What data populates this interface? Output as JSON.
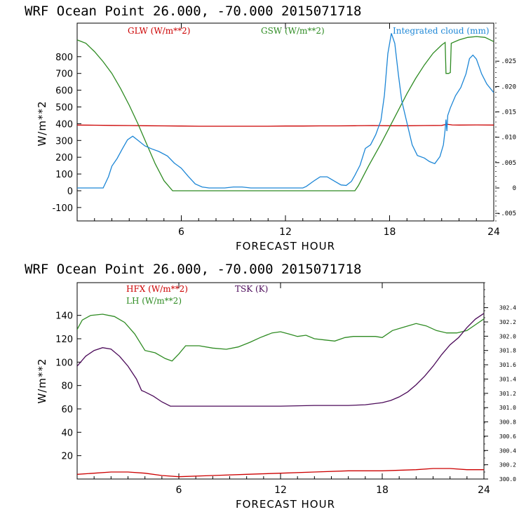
{
  "chart_data": [
    {
      "type": "line",
      "title": "WRF   Ocean Point   26.000, -70.000  2015071718",
      "xlabel": "FORECAST HOUR",
      "ylabel": "W/m**2",
      "xlim": [
        0,
        24
      ],
      "ylim": [
        -180,
        1000
      ],
      "y2lim": [
        -0.0065,
        0.0325
      ],
      "xticks": [
        "6",
        "12",
        "18",
        "24"
      ],
      "yticks": [
        "-100",
        "0",
        "100",
        "200",
        "300",
        "400",
        "500",
        "600",
        "700",
        "800"
      ],
      "y2ticks": [
        ".025",
        ".020",
        ".015",
        ".010",
        ".005",
        "0",
        "-.005"
      ],
      "series": [
        {
          "name": "GLW (W/m**2)",
          "axis": "left",
          "color": "#cc0000",
          "x": [
            0,
            1,
            2,
            3,
            4,
            5,
            6,
            7,
            8,
            9,
            10,
            11,
            12,
            13,
            14,
            15,
            16,
            17,
            18,
            19,
            20,
            21,
            21.3,
            21.6,
            22,
            23,
            24
          ],
          "y": [
            392,
            391,
            390,
            389,
            388,
            387,
            386,
            385,
            385,
            385,
            385,
            385,
            386,
            386,
            387,
            387,
            388,
            389,
            388,
            388,
            389,
            390,
            397,
            393,
            392,
            393,
            392
          ]
        },
        {
          "name": "GSW (W/m**2)",
          "axis": "left",
          "color": "#2e8b22",
          "x": [
            0,
            0.5,
            1,
            1.5,
            2,
            2.5,
            3,
            3.5,
            4,
            4.5,
            5,
            5.5,
            6,
            10,
            13,
            16,
            16.2,
            16.8,
            17.5,
            18,
            18.5,
            19,
            19.5,
            20,
            20.5,
            21,
            21.2,
            21.25,
            21.4,
            21.5,
            21.55,
            22,
            22.5,
            23,
            23.5,
            24
          ],
          "y": [
            900,
            880,
            830,
            770,
            700,
            610,
            510,
            400,
            280,
            160,
            60,
            0,
            0,
            0,
            0,
            0,
            30,
            150,
            280,
            380,
            480,
            580,
            670,
            750,
            820,
            870,
            885,
            700,
            700,
            705,
            880,
            900,
            915,
            920,
            915,
            890
          ]
        },
        {
          "name": "Integrated cloud (mm)",
          "axis": "right",
          "color": "#1c86d6",
          "x": [
            0,
            1.5,
            1.8,
            2,
            2.3,
            2.6,
            2.9,
            3.2,
            3.5,
            3.9,
            4.3,
            4.7,
            5.2,
            5.6,
            6,
            6.4,
            6.8,
            7.2,
            7.6,
            8,
            8.5,
            9,
            9.5,
            10,
            11,
            12,
            13,
            13.2,
            13.6,
            14,
            14.4,
            14.8,
            15.2,
            15.5,
            15.8,
            16,
            16.3,
            16.6,
            16.9,
            17.2,
            17.5,
            17.7,
            17.9,
            18.1,
            18.3,
            18.5,
            18.7,
            19,
            19.3,
            19.6,
            20,
            20.3,
            20.6,
            20.9,
            21.1,
            21.2,
            21.25,
            21.3,
            21.35,
            21.5,
            21.8,
            22.1,
            22.4,
            22.6,
            22.8,
            23,
            23.3,
            23.6,
            24
          ],
          "y": [
            0,
            0,
            0.0022,
            0.0043,
            0.0058,
            0.0077,
            0.0095,
            0.0102,
            0.0094,
            0.0083,
            0.0077,
            0.0072,
            0.0063,
            0.0049,
            0.0039,
            0.0023,
            0.0008,
            0.0002,
            0,
            0,
            0,
            0.0002,
            0.0002,
            0,
            0,
            0,
            0,
            0.0003,
            0.0013,
            0.0022,
            0.0022,
            0.0014,
            0.0006,
            0.0005,
            0.0013,
            0.0025,
            0.0045,
            0.0078,
            0.0085,
            0.0105,
            0.0133,
            0.0183,
            0.0265,
            0.0305,
            0.0285,
            0.0225,
            0.0172,
            0.0128,
            0.0085,
            0.0064,
            0.0059,
            0.0052,
            0.0048,
            0.0062,
            0.0085,
            0.0115,
            0.0135,
            0.0112,
            0.0143,
            0.0158,
            0.0182,
            0.0198,
            0.0225,
            0.0255,
            0.0262,
            0.0254,
            0.0225,
            0.0205,
            0.0188
          ]
        }
      ],
      "legend": "top"
    },
    {
      "type": "line",
      "title": "WRF   Ocean Point   26.000, -70.000  2015071718",
      "xlabel": "FORECAST HOUR",
      "ylabel": "W/m**2",
      "xlim": [
        0,
        24
      ],
      "ylim": [
        0,
        168
      ],
      "y2lim": [
        300.0,
        302.75
      ],
      "xticks": [
        "6",
        "12",
        "18",
        "24"
      ],
      "yticks": [
        "20",
        "40",
        "60",
        "80",
        "100",
        "120",
        "140"
      ],
      "y2ticks": [
        "302.4",
        "302.2",
        "302.0",
        "301.8",
        "301.6",
        "301.4",
        "301.2",
        "301.0",
        "300.8",
        "300.6",
        "300.4",
        "300.2",
        "300.0"
      ],
      "series": [
        {
          "name": "HFX (W/m**2)",
          "axis": "left",
          "color": "#cc0000",
          "x": [
            0,
            1,
            2,
            3,
            4,
            5,
            6,
            8,
            10,
            12,
            14,
            16,
            18,
            20,
            21,
            22,
            23,
            24
          ],
          "y": [
            4,
            5,
            6,
            6,
            5,
            3,
            2,
            3,
            4,
            5,
            6,
            7,
            7,
            8,
            9,
            9,
            8,
            8
          ]
        },
        {
          "name": "LH (W/m**2)",
          "axis": "left",
          "color": "#2e8b22",
          "x": [
            0,
            0.3,
            0.8,
            1.5,
            2.2,
            2.8,
            3.4,
            4,
            4.6,
            5.2,
            5.6,
            6,
            6.4,
            7.2,
            8,
            8.8,
            9.5,
            10.2,
            10.8,
            11.5,
            12,
            12.5,
            13,
            13.5,
            14,
            14.6,
            15.2,
            15.8,
            16.3,
            17,
            17.6,
            18,
            18.6,
            19.3,
            20,
            20.6,
            21.2,
            21.8,
            22.4,
            23,
            23.5,
            24
          ],
          "y": [
            128,
            136,
            140,
            141,
            139,
            134,
            124,
            110,
            108,
            103,
            101,
            107,
            114,
            114,
            112,
            111,
            113,
            117,
            121,
            125,
            126,
            124,
            122,
            123,
            120,
            119,
            118,
            121,
            122,
            122,
            122,
            121,
            127,
            130,
            133,
            131,
            127,
            125,
            125,
            127,
            132,
            137
          ]
        },
        {
          "name": "TSK (K)",
          "axis": "right",
          "color": "#4b0a59",
          "x": [
            0,
            0.5,
            1,
            1.5,
            2,
            2.5,
            3,
            3.5,
            3.8,
            4,
            4.5,
            5,
            5.5,
            6,
            8,
            10,
            12,
            14,
            16,
            17,
            18,
            18.5,
            19,
            19.5,
            20,
            20.5,
            21,
            21.5,
            22,
            22.5,
            23,
            23.5,
            24
          ],
          "y": [
            301.58,
            301.72,
            301.8,
            301.84,
            301.82,
            301.72,
            301.58,
            301.4,
            301.24,
            301.22,
            301.16,
            301.08,
            301.02,
            301.02,
            301.02,
            301.02,
            301.02,
            301.03,
            301.03,
            301.04,
            301.07,
            301.1,
            301.15,
            301.22,
            301.32,
            301.44,
            301.58,
            301.74,
            301.88,
            301.98,
            302.12,
            302.24,
            302.32
          ]
        }
      ],
      "legend": "top-left"
    }
  ]
}
